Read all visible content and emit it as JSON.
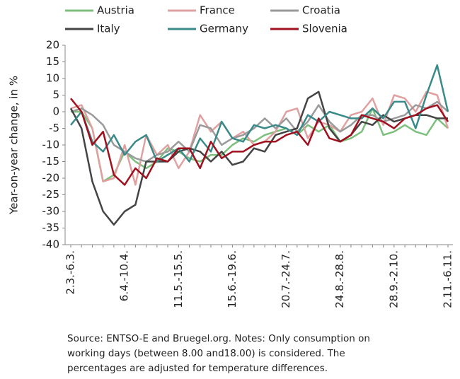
{
  "chart_data": {
    "type": "line",
    "y_label": "Year-on-year change, in %",
    "categories": [
      "2.3.-6.3.",
      null,
      null,
      null,
      null,
      "6.4.-10.4.",
      null,
      null,
      null,
      null,
      "11.5.-15.5.",
      null,
      null,
      null,
      null,
      "15.6.-19.6.",
      null,
      null,
      null,
      null,
      "20.7.-24.7.",
      null,
      null,
      null,
      null,
      "24.8.-28.8.",
      null,
      null,
      null,
      null,
      "28.9.-2.10.",
      null,
      null,
      null,
      null,
      "2.11.-6.11."
    ],
    "series": [
      {
        "name": "Austria",
        "color": "#7dbf7d",
        "values": [
          0,
          0,
          -5,
          -21,
          -19,
          -12,
          -15,
          -17,
          -15,
          -11,
          -12,
          -14,
          -15,
          -13,
          -13,
          -10,
          -8,
          -9,
          -7,
          -6,
          -5,
          -7,
          -4,
          -6,
          -4,
          -9,
          -8,
          -6,
          1,
          -7,
          -6,
          -4,
          -6,
          -7,
          -2,
          -5
        ]
      },
      {
        "name": "France",
        "color": "#e0a0a0",
        "values": [
          1,
          2,
          -5,
          -21,
          -20,
          -10,
          -22,
          -7,
          -13,
          -10,
          -17,
          -12,
          -1,
          -6,
          -3,
          -8,
          -6,
          -10,
          -9,
          -6,
          0,
          1,
          -8,
          -3,
          -4,
          -6,
          -1,
          0,
          4,
          -4,
          5,
          4,
          0,
          6,
          5,
          -5
        ]
      },
      {
        "name": "Croatia",
        "color": "#9a9a9a",
        "values": [
          0,
          1,
          -1,
          -4,
          -10,
          -12,
          -14,
          -15,
          -13,
          -12,
          -9,
          -12,
          -4,
          -5,
          -10,
          -8,
          -7,
          -5,
          -2,
          -5,
          -2,
          -6,
          -3,
          2,
          -3,
          -6,
          -4,
          -1,
          -1,
          -3,
          -2,
          -1,
          2,
          1,
          3,
          0
        ]
      },
      {
        "name": "Italy",
        "color": "#444444",
        "values": [
          1,
          -5,
          -21,
          -30,
          -34,
          -30,
          -28,
          -15,
          -15,
          -15,
          -12,
          -11,
          -12,
          -15,
          -12,
          -16,
          -15,
          -11,
          -12,
          -7,
          -6,
          -5,
          4,
          6,
          -5,
          -9,
          -7,
          -3,
          -4,
          -1,
          -3,
          -2,
          -1,
          -1,
          -2,
          -2
        ]
      },
      {
        "name": "Germany",
        "color": "#3a8a8a",
        "values": [
          -4,
          0,
          -9,
          -12,
          -7,
          -13,
          -9,
          -7,
          -15,
          -13,
          -11,
          -15,
          -8,
          -12,
          -3,
          -8,
          -9,
          -4,
          -5,
          -4,
          -5,
          -7,
          -1,
          -3,
          0,
          -1,
          -2,
          -2,
          1,
          -2,
          3,
          3,
          -5,
          5,
          14,
          0
        ]
      },
      {
        "name": "Slovenia",
        "color": "#a0101e",
        "values": [
          4,
          0,
          -10,
          -6,
          -19,
          -22,
          -17,
          -20,
          -14,
          -15,
          -11,
          -11,
          -17,
          -9,
          -14,
          -12,
          -12,
          -10,
          -9,
          -9,
          -7,
          -6,
          -10,
          -2,
          -8,
          -9,
          -7,
          -1,
          -2,
          -3,
          -5,
          -2,
          -1,
          1,
          2,
          -3
        ]
      }
    ],
    "ylim": [
      -40,
      20
    ],
    "yticks": [
      -40,
      -35,
      -30,
      -25,
      -20,
      -15,
      -10,
      -5,
      0,
      5,
      10,
      15,
      20
    ],
    "note": [
      "Source: ENTSO-E and Bruegel.org. Notes: Only consumption on",
      "working days (between 8.00 and18.00) is considered. The",
      "percentages are adjusted for temperature differences."
    ]
  }
}
